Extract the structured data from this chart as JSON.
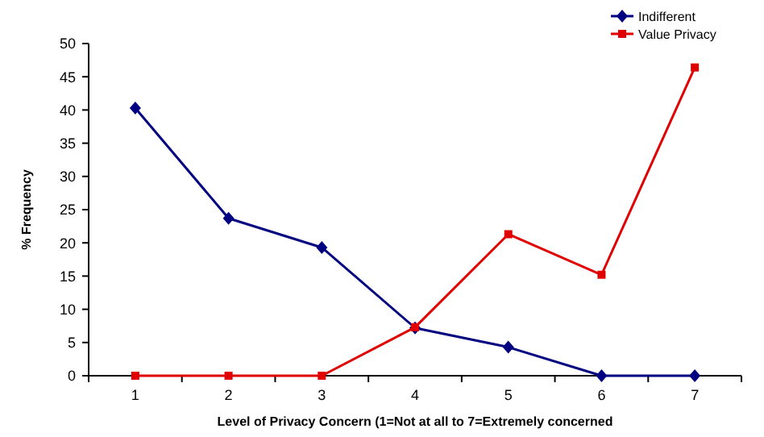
{
  "chart_data": {
    "type": "line",
    "xlabel": "Level of Privacy Concern (1=Not at all  to 7=Extremely concerned",
    "ylabel": "% Frequency",
    "categories": [
      "1",
      "2",
      "3",
      "4",
      "5",
      "6",
      "7"
    ],
    "ylim": [
      0,
      50
    ],
    "yticks": [
      0,
      5,
      10,
      15,
      20,
      25,
      30,
      35,
      40,
      45,
      50
    ],
    "grid": false,
    "legend": "top right",
    "series": [
      {
        "name": "Indifferent",
        "color": "#000080",
        "marker": "diamond",
        "values": [
          40.3,
          23.7,
          19.3,
          7.2,
          4.3,
          0,
          0
        ]
      },
      {
        "name": "Value Privacy",
        "color": "#e00000",
        "marker": "square",
        "values": [
          0,
          0,
          0,
          7.3,
          21.3,
          15.2,
          46.4
        ]
      }
    ]
  }
}
